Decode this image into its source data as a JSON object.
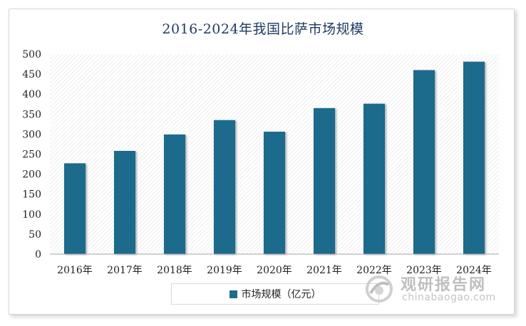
{
  "chart_data": {
    "type": "bar",
    "title": "2016-2024年我国比萨市场规模",
    "categories": [
      "2016年",
      "2017年",
      "2018年",
      "2019年",
      "2020年",
      "2021年",
      "2022年",
      "2023年",
      "2024年"
    ],
    "series": [
      {
        "name": "市场规模（亿元）",
        "values": [
          227,
          258,
          299,
          335,
          306,
          365,
          376,
          460,
          481
        ]
      }
    ],
    "ylim": [
      0,
      500
    ],
    "yticks": [
      0,
      50,
      100,
      150,
      200,
      250,
      300,
      350,
      400,
      450,
      500
    ],
    "grid": false,
    "legend_position": "bottom",
    "bar_color": "#1e6b8c"
  },
  "watermark": {
    "cn": "观研报告网",
    "en": "chinabaogao.com"
  }
}
